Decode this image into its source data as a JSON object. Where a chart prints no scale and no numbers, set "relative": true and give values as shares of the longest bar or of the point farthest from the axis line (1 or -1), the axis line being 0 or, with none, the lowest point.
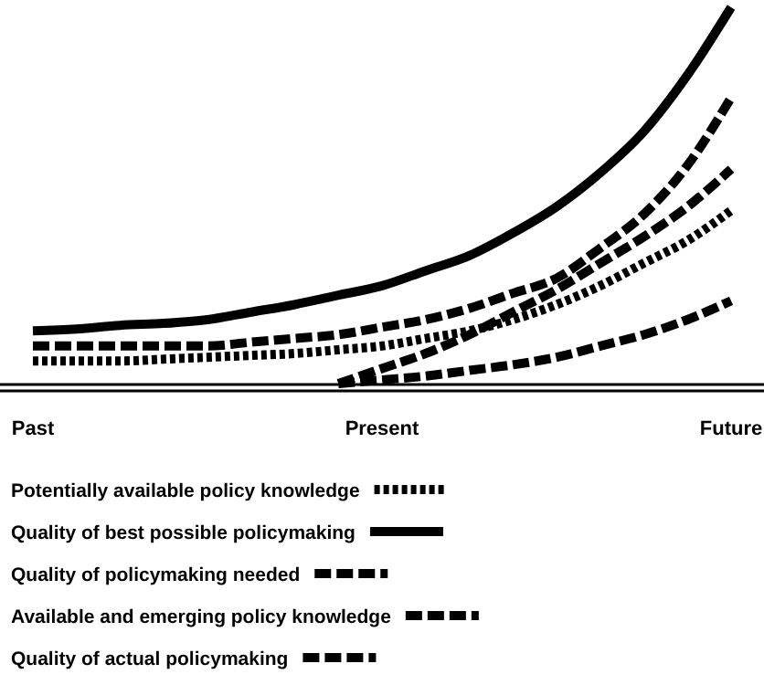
{
  "chart_data": {
    "type": "line",
    "relative": true,
    "categories": [
      "Past",
      null,
      null,
      null,
      null,
      null,
      null,
      null,
      "Present",
      null,
      null,
      null,
      null,
      null,
      null,
      null,
      "Future"
    ],
    "legend": "bottom",
    "grid": false,
    "marker": "none",
    "series": [
      {
        "name": "Potentially available policy knowledge",
        "color": "#000000",
        "line_style": "dotted",
        "values": [
          0.06,
          0.06,
          0.06,
          0.065,
          0.07,
          0.075,
          0.08,
          0.09,
          0.1,
          0.12,
          0.14,
          0.17,
          0.21,
          0.26,
          0.32,
          0.38,
          0.46
        ]
      },
      {
        "name": "Quality of best possible policymaking",
        "color": "#000000",
        "line_style": "solid",
        "values": [
          0.14,
          0.145,
          0.155,
          0.16,
          0.17,
          0.19,
          0.21,
          0.235,
          0.26,
          0.3,
          0.34,
          0.4,
          0.47,
          0.56,
          0.67,
          0.82,
          1
        ]
      },
      {
        "name": "Quality of policymaking needed",
        "color": "#000000",
        "line_style": "dashed",
        "values": [
          0.1,
          0.1,
          0.1,
          0.1,
          0.1,
          0.11,
          0.12,
          0.13,
          0.15,
          0.17,
          0.2,
          0.24,
          0.28,
          0.36,
          0.45,
          0.58,
          0.76
        ]
      },
      {
        "name": "Available and emerging policy knowledge",
        "color": "#000000",
        "line_style": "dashed",
        "values": [
          null,
          null,
          null,
          null,
          null,
          null,
          null,
          0,
          0.04,
          0.08,
          0.13,
          0.19,
          0.25,
          0.32,
          0.39,
          0.47,
          0.57
        ]
      },
      {
        "name": "Quality of actual policymaking",
        "color": "#000000",
        "line_style": "dashed",
        "values": [
          null,
          null,
          null,
          null,
          null,
          null,
          null,
          0,
          0.01,
          0.02,
          0.035,
          0.05,
          0.07,
          0.1,
          0.13,
          0.17,
          0.22
        ]
      }
    ]
  }
}
